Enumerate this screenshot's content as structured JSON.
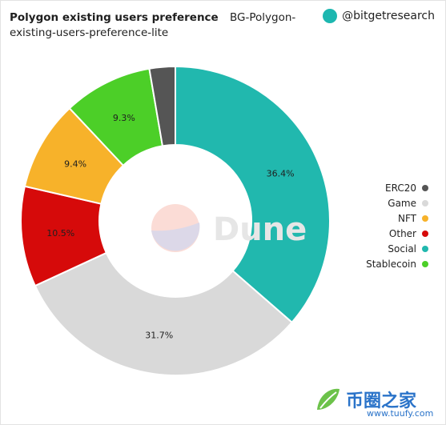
{
  "header": {
    "title": "Polygon existing users preference",
    "subtitle": "BG-Polygon-existing-users-preference-lite",
    "handle": "@bitgetresearch",
    "logo_text": "bitget"
  },
  "dune_text": "Dune",
  "watermark": {
    "text": "币圈之家",
    "url": "www.tuufy.com"
  },
  "colors": {
    "ERC20": "#555555",
    "Game": "#d9d9d9",
    "NFT": "#f7b22a",
    "Other": "#d60a0a",
    "Social": "#21b8ae",
    "Stablecoin": "#4ccf28"
  },
  "chart_data": {
    "type": "pie",
    "donut": true,
    "legend_position": "right",
    "slices": [
      {
        "label": "Social",
        "value": 36.4,
        "display": "36.4%"
      },
      {
        "label": "Game",
        "value": 31.7,
        "display": "31.7%"
      },
      {
        "label": "Other",
        "value": 10.5,
        "display": "10.5%"
      },
      {
        "label": "NFT",
        "value": 9.4,
        "display": "9.4%"
      },
      {
        "label": "Stablecoin",
        "value": 9.3,
        "display": "9.3%"
      },
      {
        "label": "ERC20",
        "value": 2.7,
        "display": ""
      }
    ],
    "legend": [
      "ERC20",
      "Game",
      "NFT",
      "Other",
      "Social",
      "Stablecoin"
    ]
  }
}
